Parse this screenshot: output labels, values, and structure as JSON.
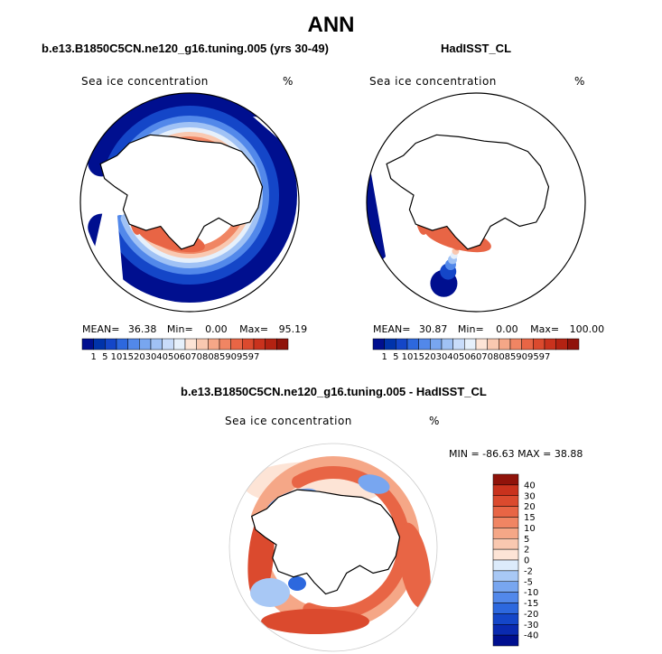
{
  "title": "ANN",
  "panels": {
    "model": {
      "run_title": "b.e13.B1850C5CN.ne120_g16.tuning.005 (yrs 30-49)",
      "field": "Sea ice concentration",
      "units": "%",
      "mean_label": "MEAN=",
      "mean": "36.38",
      "min_label": "Min=",
      "min": "0.00",
      "max_label": "Max=",
      "max": "95.19"
    },
    "obs": {
      "run_title": "HadISST_CL",
      "field": "Sea ice concentration",
      "units": "%",
      "mean_label": "MEAN=",
      "mean": "30.87",
      "min_label": "Min=",
      "min": "0.00",
      "max_label": "Max=",
      "max": "100.00"
    },
    "diff": {
      "run_title": "b.e13.B1850C5CN.ne120_g16.tuning.005 - HadISST_CL",
      "field": "Sea ice concentration",
      "units": "%",
      "minmax": "MIN = -86.63 MAX =  38.88"
    }
  },
  "colors": {
    "seq": [
      "#000f8f",
      "#0033aa",
      "#1446c8",
      "#2d68de",
      "#5288ea",
      "#78a6f0",
      "#a0c2f5",
      "#c8dcfa",
      "#e6f0fb",
      "#fde4d6",
      "#f9c8b0",
      "#f5a787",
      "#f08563",
      "#e86545",
      "#db4a2e",
      "#c9321d",
      "#b32212",
      "#90130a"
    ],
    "div": [
      "#000f8f",
      "#0a2ab0",
      "#1446c8",
      "#2d68de",
      "#5288ea",
      "#78a6f0",
      "#a8c8f5",
      "#dcebfb",
      "#fde4d6",
      "#f9c8b0",
      "#f5a787",
      "#f08563",
      "#e86545",
      "#db4a2e",
      "#c9321d",
      "#90130a"
    ],
    "land": "#ffffff",
    "line": "#000000"
  },
  "chart_data": [
    {
      "type": "heatmap",
      "title": "b.e13.B1850C5CN.ne120_g16.tuning.005 (yrs 30-49)",
      "field": "Sea ice concentration",
      "units": "%",
      "projection": "south polar stereographic",
      "colorbar_levels": [
        1,
        5,
        10,
        15,
        20,
        30,
        40,
        50,
        60,
        70,
        80,
        85,
        90,
        95,
        97
      ],
      "stats": {
        "mean": 36.38,
        "min": 0.0,
        "max": 95.19
      }
    },
    {
      "type": "heatmap",
      "title": "HadISST_CL",
      "field": "Sea ice concentration",
      "units": "%",
      "projection": "south polar stereographic",
      "colorbar_levels": [
        1,
        5,
        10,
        15,
        20,
        30,
        40,
        50,
        60,
        70,
        80,
        85,
        90,
        95,
        97
      ],
      "stats": {
        "mean": 30.87,
        "min": 0.0,
        "max": 100.0
      }
    },
    {
      "type": "heatmap",
      "title": "b.e13.B1850C5CN.ne120_g16.tuning.005 - HadISST_CL",
      "field": "Sea ice concentration",
      "units": "%",
      "projection": "south polar stereographic",
      "colorbar_levels": [
        40,
        30,
        20,
        15,
        10,
        5,
        2,
        0,
        -2,
        -5,
        -10,
        -15,
        -20,
        -30,
        -40
      ],
      "stats": {
        "min": -86.63,
        "max": 38.88
      }
    }
  ]
}
